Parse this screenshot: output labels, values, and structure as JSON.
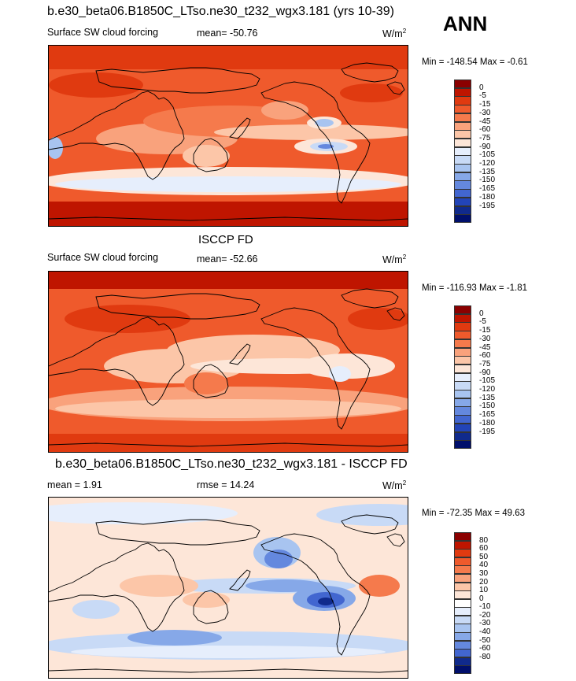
{
  "header": {
    "title": "b.e30_beta06.B1850C_LTso.ne30_t232_wgx3.181 (yrs 10-39)",
    "season": "ANN"
  },
  "colors": {
    "forcing_scale": [
      "#8b0000",
      "#bf1500",
      "#e03a10",
      "#ef5a2c",
      "#f57a4c",
      "#f9a27c",
      "#fcc6a8",
      "#fde6d8",
      "#e6eefc",
      "#c8daf6",
      "#a8c4f0",
      "#86a8e8",
      "#6488de",
      "#4266d0",
      "#2244b8",
      "#102a8c",
      "#000f6b"
    ],
    "diff_scale": [
      "#8b0000",
      "#bf1500",
      "#e03a10",
      "#ef5a2c",
      "#f57a4c",
      "#f9a27c",
      "#fcc6a8",
      "#fde6d8",
      "#ffffff",
      "#e6eefc",
      "#c8daf6",
      "#a8c4f0",
      "#86a8e8",
      "#6488de",
      "#4266d0",
      "#102a8c",
      "#000f6b"
    ]
  },
  "chart_data": [
    {
      "type": "heatmap",
      "panel": "model",
      "variable": "Surface SW cloud forcing",
      "mean_label": "mean= -50.76",
      "units": "W/m",
      "units_sup": "2",
      "minmax": "Min = -148.54 Max =  -0.61",
      "levels": [
        "0",
        "-5",
        "-15",
        "-30",
        "-45",
        "-60",
        "-75",
        "-90",
        "-105",
        "-120",
        "-135",
        "-150",
        "-165",
        "-180",
        "-195"
      ]
    },
    {
      "type": "heatmap",
      "panel": "obs",
      "title": "ISCCP FD",
      "variable": "Surface SW cloud forcing",
      "mean_label": "mean= -52.66",
      "units": "W/m",
      "units_sup": "2",
      "minmax": "Min = -116.93 Max =  -1.81",
      "levels": [
        "0",
        "-5",
        "-15",
        "-30",
        "-45",
        "-60",
        "-75",
        "-90",
        "-105",
        "-120",
        "-135",
        "-150",
        "-165",
        "-180",
        "-195"
      ]
    },
    {
      "type": "heatmap",
      "panel": "difference",
      "title": "b.e30_beta06.B1850C_LTso.ne30_t232_wgx3.181 - ISCCP FD",
      "mean_label": "mean =   1.91",
      "rmse_label": "rmse =  14.24",
      "units": "W/m",
      "units_sup": "2",
      "minmax": "Min = -72.35 Max =  49.63",
      "levels": [
        "80",
        "60",
        "50",
        "40",
        "30",
        "20",
        "10",
        "0",
        "-10",
        "-20",
        "-30",
        "-40",
        "-50",
        "-60",
        "-80"
      ]
    }
  ]
}
